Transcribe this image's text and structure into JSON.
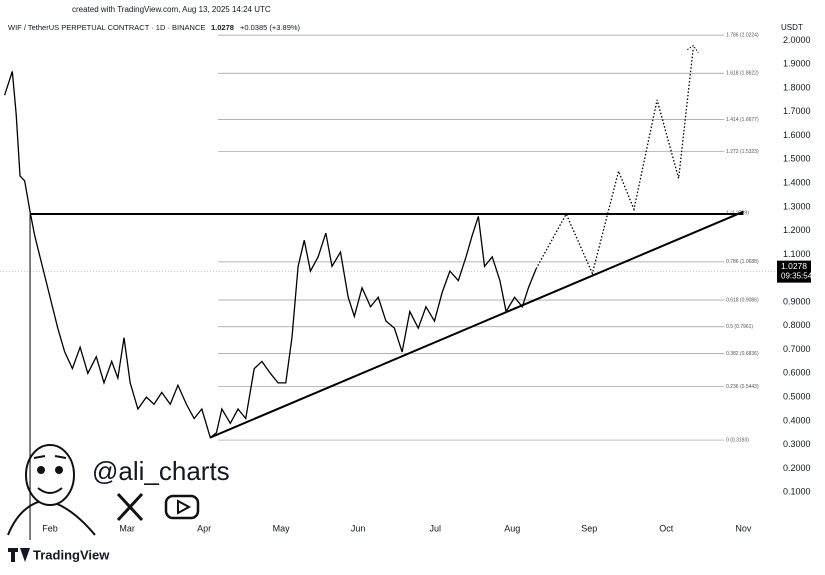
{
  "chart_data": {
    "type": "line",
    "created": "created with TradingView.com, Aug 13, 2025 14:24 UTC",
    "title": "WIF / TetherUS PERPETUAL CONTRACT · 1D · BINANCE",
    "last_price": 1.0278,
    "change": "+0.0385 (+3.89%)",
    "last_time": "09:35:54",
    "currency": "USDT",
    "watermark": "@ali_charts",
    "brand": "TradingView",
    "xlim": [
      1.35,
      11.32
    ],
    "ylim": [
      -0.0,
      2.0735
    ],
    "xticks": [
      {
        "value": 2,
        "label": "Feb"
      },
      {
        "value": 3,
        "label": "Mar"
      },
      {
        "value": 4,
        "label": "Apr"
      },
      {
        "value": 5,
        "label": "May"
      },
      {
        "value": 6,
        "label": "Jun"
      },
      {
        "value": 7,
        "label": "Jul"
      },
      {
        "value": 8,
        "label": "Aug"
      },
      {
        "value": 9,
        "label": "Sep"
      },
      {
        "value": 10,
        "label": "Oct"
      },
      {
        "value": 11,
        "label": "Nov"
      }
    ],
    "yticks": [
      {
        "value": 0.1,
        "label": "0.1000"
      },
      {
        "value": 0.2,
        "label": "0.2000"
      },
      {
        "value": 0.3,
        "label": "0.3000"
      },
      {
        "value": 0.4,
        "label": "0.4000"
      },
      {
        "value": 0.5,
        "label": "0.5000"
      },
      {
        "value": 0.6,
        "label": "0.6000"
      },
      {
        "value": 0.7,
        "label": "0.7000"
      },
      {
        "value": 0.8,
        "label": "0.8000"
      },
      {
        "value": 0.9,
        "label": "0.9000"
      },
      {
        "value": 1.1,
        "label": "1.1000"
      },
      {
        "value": 1.2,
        "label": "1.2000"
      },
      {
        "value": 1.3,
        "label": "1.3000"
      },
      {
        "value": 1.4,
        "label": "1.4000"
      },
      {
        "value": 1.5,
        "label": "1.5000"
      },
      {
        "value": 1.6,
        "label": "1.6000"
      },
      {
        "value": 1.7,
        "label": "1.7000"
      },
      {
        "value": 1.8,
        "label": "1.8000"
      },
      {
        "value": 1.9,
        "label": "1.9000"
      },
      {
        "value": 2.0,
        "label": "2.0000"
      }
    ],
    "price": {
      "color": "#000000",
      "x": [
        1.41,
        1.51,
        1.56,
        1.61,
        1.67,
        1.74,
        1.8,
        1.9,
        2.0,
        2.1,
        2.19,
        2.29,
        2.39,
        2.49,
        2.6,
        2.7,
        2.8,
        2.88,
        2.96,
        3.04,
        3.14,
        3.25,
        3.35,
        3.45,
        3.56,
        3.66,
        3.77,
        3.87,
        3.97,
        4.08,
        4.16,
        4.23,
        4.34,
        4.44,
        4.54,
        4.65,
        4.75,
        4.86,
        4.96,
        5.06,
        5.14,
        5.22,
        5.3,
        5.38,
        5.48,
        5.58,
        5.66,
        5.77,
        5.87,
        5.95,
        6.05,
        6.16,
        6.26,
        6.36,
        6.47,
        6.57,
        6.67,
        6.78,
        6.88,
        6.99,
        7.09,
        7.19,
        7.3,
        7.4,
        7.48,
        7.56,
        7.64,
        7.74,
        7.84,
        7.92,
        8.03,
        8.13,
        8.21,
        8.31
      ],
      "values": [
        1.77,
        1.87,
        1.69,
        1.43,
        1.41,
        1.28,
        1.18,
        1.05,
        0.92,
        0.79,
        0.69,
        0.62,
        0.71,
        0.6,
        0.67,
        0.56,
        0.65,
        0.58,
        0.75,
        0.56,
        0.45,
        0.5,
        0.47,
        0.52,
        0.47,
        0.55,
        0.47,
        0.41,
        0.45,
        0.33,
        0.35,
        0.45,
        0.39,
        0.45,
        0.41,
        0.62,
        0.65,
        0.6,
        0.56,
        0.56,
        0.75,
        1.05,
        1.16,
        1.03,
        1.09,
        1.19,
        1.05,
        1.11,
        0.92,
        0.84,
        0.96,
        0.88,
        0.92,
        0.82,
        0.79,
        0.69,
        0.86,
        0.79,
        0.88,
        0.82,
        0.94,
        1.03,
        0.99,
        1.09,
        1.18,
        1.26,
        1.05,
        1.09,
        0.99,
        0.86,
        0.92,
        0.88,
        0.96,
        1.04
      ]
    },
    "projection": {
      "color": "#000000",
      "x": [
        8.31,
        8.7,
        9.04,
        9.38,
        9.58,
        9.88,
        10.16,
        10.35
      ],
      "values": [
        1.04,
        1.27,
        1.02,
        1.45,
        1.29,
        1.75,
        1.42,
        1.97
      ]
    },
    "resistance": {
      "x": [
        1.74,
        11.0
      ],
      "values": [
        1.27,
        1.27
      ]
    },
    "support": {
      "x": [
        4.08,
        11.0
      ],
      "values": [
        0.33,
        1.28
      ]
    },
    "fib_start": 4.18,
    "fib_end": 10.75,
    "fib_levels": [
      {
        "value": 0.3193,
        "label": "0 (0.3193)"
      },
      {
        "value": 0.5443,
        "label": "0.236 (0.5443)"
      },
      {
        "value": 0.6836,
        "label": "0.382 (0.6836)"
      },
      {
        "value": 0.7961,
        "label": "0.5 (0.7961)"
      },
      {
        "value": 0.9086,
        "label": "0.618 (0.9086)"
      },
      {
        "value": 1.0688,
        "label": "0.786 (1.0688)"
      },
      {
        "value": 1.2729,
        "label": "1 (1.2729)"
      },
      {
        "value": 1.5323,
        "label": "1.272 (1.5323)"
      },
      {
        "value": 1.6677,
        "label": "1.414 (1.6677)"
      },
      {
        "value": 1.8622,
        "label": "1.618 (1.8622)"
      },
      {
        "value": 2.0224,
        "label": "1.786 (2.0224)"
      }
    ]
  }
}
